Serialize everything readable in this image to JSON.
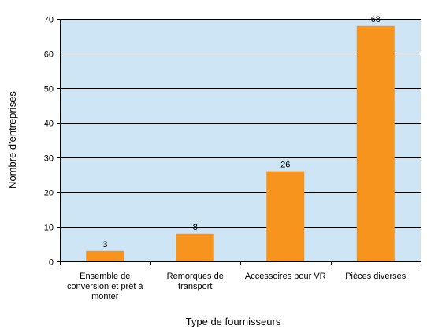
{
  "chart_data": {
    "type": "bar",
    "categories": [
      [
        "Ensemble de",
        "conversion et prêt à",
        "monter"
      ],
      [
        "Remorques de",
        "transport"
      ],
      [
        "Accessoires pour VR"
      ],
      [
        "Pièces diverses"
      ]
    ],
    "values": [
      3,
      8,
      26,
      68
    ],
    "data_labels": [
      "3",
      "8",
      "26",
      "68"
    ],
    "title": "",
    "xlabel": "Type de fournisseurs",
    "ylabel": "Nombre d'entreprises",
    "ylim": [
      0,
      70
    ],
    "yticks": [
      0,
      10,
      20,
      30,
      40,
      50,
      60,
      70
    ],
    "grid": "horizontal",
    "legend": "none",
    "colors": {
      "bar": "#F7941D",
      "plot_background": "#CDE5F5",
      "gridline": "#000000"
    }
  }
}
